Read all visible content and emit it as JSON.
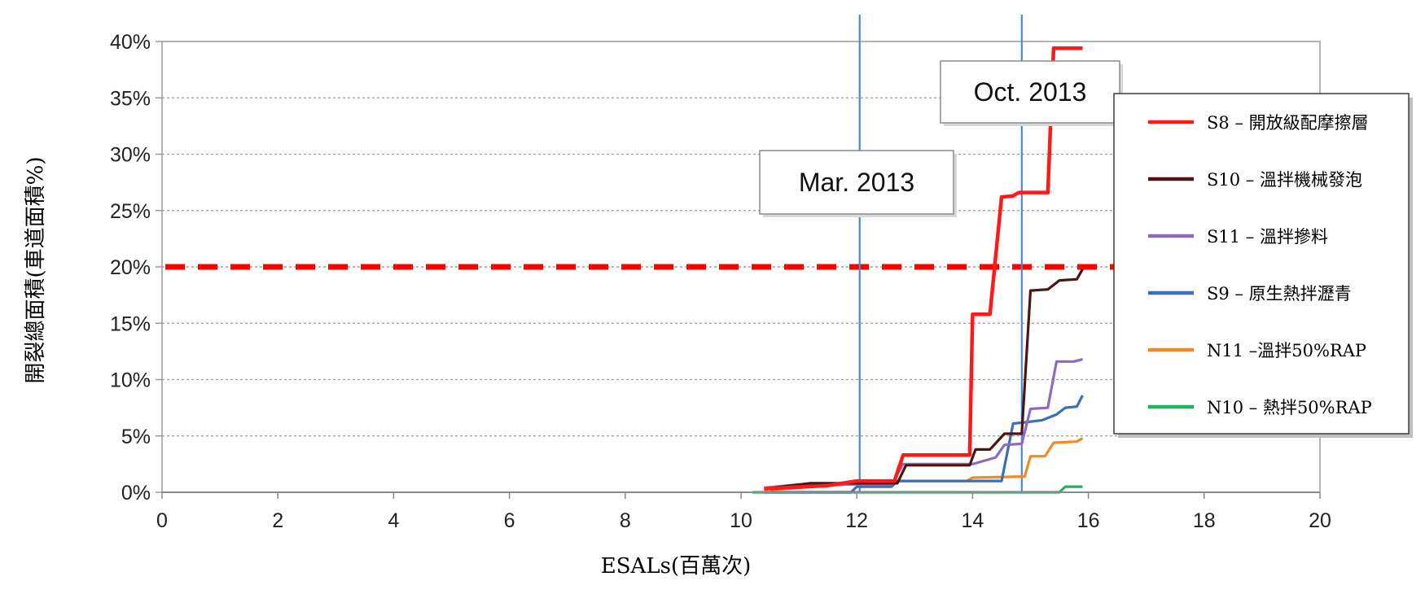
{
  "chart_data": {
    "type": "line",
    "xlabel": "ESALs(百萬次)",
    "ylabel": "開裂總面積(車道面積%)",
    "xlim": [
      0,
      20
    ],
    "ylim": [
      0,
      40
    ],
    "x_ticks": [
      "0",
      "2",
      "4",
      "6",
      "8",
      "10",
      "12",
      "14",
      "16",
      "18",
      "20"
    ],
    "y_ticks": [
      "0%",
      "5%",
      "10%",
      "15%",
      "20%",
      "25%",
      "30%",
      "35%",
      "40%"
    ],
    "grid": "horizontal dashed",
    "legend_position": "right",
    "threshold": {
      "value": 20,
      "style": "dashed",
      "color": "#ff0000"
    },
    "annotations": [
      {
        "label": "Mar. 2013",
        "x": 12.05
      },
      {
        "label": "Oct. 2013",
        "x": 14.85
      }
    ],
    "series": [
      {
        "name": "S8 – 開放級配摩擦層",
        "color": "#ff1a1a",
        "points": [
          [
            10.4,
            0.3
          ],
          [
            11.5,
            0.6
          ],
          [
            12.0,
            1.0
          ],
          [
            12.65,
            1.0
          ],
          [
            12.8,
            3.3
          ],
          [
            13.95,
            3.3
          ],
          [
            14.0,
            15.8
          ],
          [
            14.3,
            15.8
          ],
          [
            14.5,
            26.2
          ],
          [
            14.7,
            26.3
          ],
          [
            14.8,
            26.6
          ],
          [
            15.3,
            26.6
          ],
          [
            15.4,
            39.4
          ],
          [
            15.9,
            39.4
          ]
        ]
      },
      {
        "name": "S10 – 溫拌機械發泡",
        "color": "#4a1515",
        "points": [
          [
            10.4,
            0.3
          ],
          [
            11.2,
            0.8
          ],
          [
            12.7,
            0.8
          ],
          [
            12.85,
            2.4
          ],
          [
            13.95,
            2.4
          ],
          [
            14.05,
            3.8
          ],
          [
            14.3,
            3.8
          ],
          [
            14.55,
            5.2
          ],
          [
            14.85,
            5.2
          ],
          [
            15.0,
            17.9
          ],
          [
            15.3,
            18.0
          ],
          [
            15.5,
            18.8
          ],
          [
            15.8,
            18.9
          ],
          [
            15.9,
            19.8
          ]
        ]
      },
      {
        "name": "S11 – 溫拌摻料",
        "color": "#8c6bbf",
        "points": [
          [
            10.4,
            0.4
          ],
          [
            11.0,
            0.7
          ],
          [
            12.6,
            0.7
          ],
          [
            12.8,
            2.5
          ],
          [
            14.0,
            2.5
          ],
          [
            14.4,
            3.1
          ],
          [
            14.55,
            4.2
          ],
          [
            14.85,
            4.3
          ],
          [
            15.0,
            7.4
          ],
          [
            15.3,
            7.5
          ],
          [
            15.45,
            11.6
          ],
          [
            15.75,
            11.6
          ],
          [
            15.9,
            11.8
          ]
        ]
      },
      {
        "name": "S9 – 原生熱拌瀝青",
        "color": "#3b6fb6",
        "points": [
          [
            10.4,
            0.0
          ],
          [
            11.9,
            0.0
          ],
          [
            12.0,
            0.5
          ],
          [
            12.6,
            0.5
          ],
          [
            12.7,
            1.0
          ],
          [
            14.5,
            1.0
          ],
          [
            14.7,
            6.1
          ],
          [
            14.9,
            6.2
          ],
          [
            15.2,
            6.4
          ],
          [
            15.45,
            6.9
          ],
          [
            15.6,
            7.5
          ],
          [
            15.8,
            7.6
          ],
          [
            15.9,
            8.6
          ]
        ]
      },
      {
        "name": "N11 –溫拌50%RAP",
        "color": "#f08a24",
        "points": [
          [
            10.5,
            0.2
          ],
          [
            12.6,
            1.0
          ],
          [
            13.9,
            1.0
          ],
          [
            14.0,
            1.3
          ],
          [
            14.9,
            1.4
          ],
          [
            15.0,
            3.2
          ],
          [
            15.25,
            3.2
          ],
          [
            15.4,
            4.4
          ],
          [
            15.8,
            4.5
          ],
          [
            15.9,
            4.8
          ]
        ]
      },
      {
        "name": "N10 – 熱拌50%RAP",
        "color": "#20b45a",
        "points": [
          [
            10.2,
            0.0
          ],
          [
            15.5,
            0.0
          ],
          [
            15.6,
            0.5
          ],
          [
            15.9,
            0.5
          ]
        ]
      }
    ]
  }
}
